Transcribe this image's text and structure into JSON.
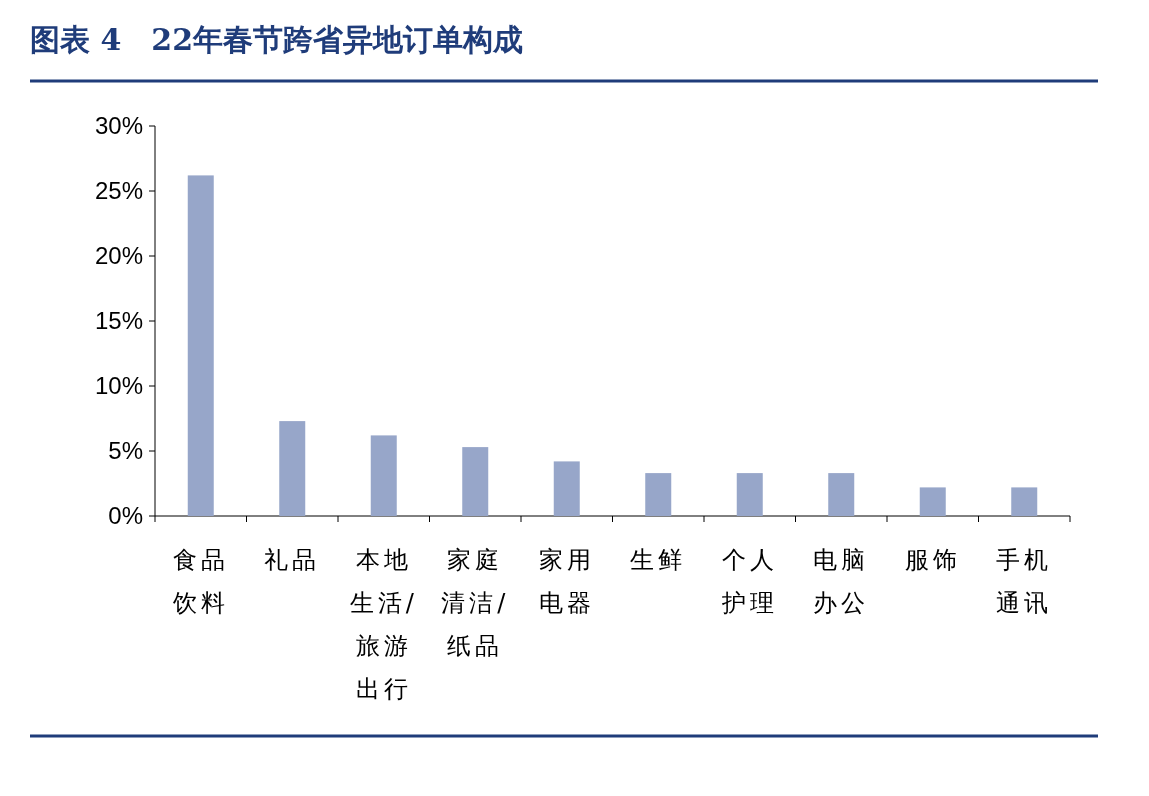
{
  "chart_data": {
    "type": "bar",
    "title": "图表 4　22年春节跨省异地订单构成",
    "categories": [
      "食品饮料",
      "礼品",
      "本地生活/旅游出行",
      "家庭清洁/纸品",
      "家用电器",
      "生鲜",
      "个人护理",
      "电脑办公",
      "服饰",
      "手机通讯"
    ],
    "values": [
      26.2,
      7.3,
      6.2,
      5.3,
      4.2,
      3.3,
      3.3,
      3.3,
      2.2,
      2.2
    ],
    "color": "#97a6c9",
    "ylim": [
      0,
      30
    ],
    "yticks": [
      {
        "value": 0,
        "label": "0%"
      },
      {
        "value": 5,
        "label": "5%"
      },
      {
        "value": 10,
        "label": "10%"
      },
      {
        "value": 15,
        "label": "15%"
      },
      {
        "value": 20,
        "label": "20%"
      },
      {
        "value": 25,
        "label": "25%"
      },
      {
        "value": 30,
        "label": "30%"
      }
    ]
  }
}
